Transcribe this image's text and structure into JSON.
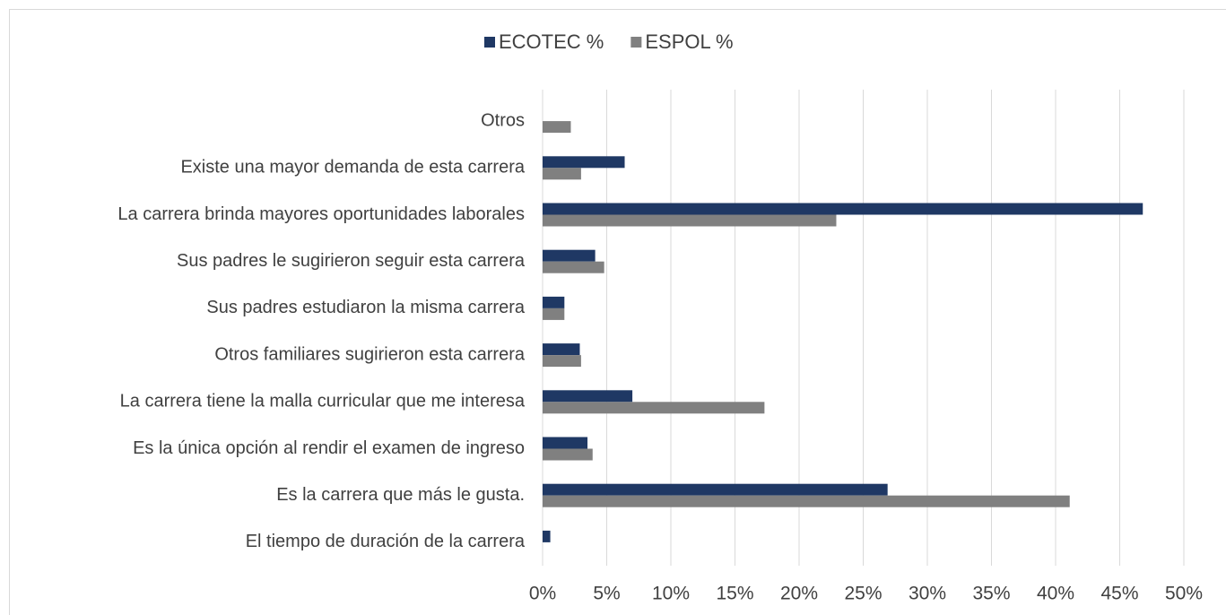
{
  "chart_data": {
    "type": "hbar",
    "categories": [
      "Otros",
      "Existe una mayor demanda de esta carrera",
      "La carrera brinda mayores oportunidades laborales",
      "Sus padres le sugirieron seguir esta carrera",
      "Sus padres estudiaron la misma carrera",
      "Otros familiares sugirieron esta carrera",
      "La carrera tiene la malla curricular que me interesa",
      "Es la única opción  al rendir el examen de ingreso",
      "Es la carrera que más le gusta.",
      "El tiempo de duración de la carrera"
    ],
    "series": [
      {
        "name": "ECOTEC %",
        "color": "#1f3864",
        "values": [
          0,
          6.4,
          46.8,
          4.1,
          1.7,
          2.9,
          7.0,
          3.5,
          26.9,
          0.6
        ]
      },
      {
        "name": "ESPOL %",
        "color": "#808080",
        "values": [
          2.2,
          3.0,
          22.9,
          4.8,
          1.7,
          3.0,
          17.3,
          3.9,
          41.1,
          0
        ]
      }
    ],
    "xlim": [
      0,
      50
    ],
    "xticks": [
      {
        "value": 0,
        "label": "0%"
      },
      {
        "value": 5,
        "label": "5%"
      },
      {
        "value": 10,
        "label": "10%"
      },
      {
        "value": 15,
        "label": "15%"
      },
      {
        "value": 20,
        "label": "20%"
      },
      {
        "value": 25,
        "label": "25%"
      },
      {
        "value": 30,
        "label": "30%"
      },
      {
        "value": 35,
        "label": "35%"
      },
      {
        "value": 40,
        "label": "40%"
      },
      {
        "value": 45,
        "label": "45%"
      },
      {
        "value": 50,
        "label": "50%"
      }
    ],
    "grid": true,
    "legend": "top"
  }
}
